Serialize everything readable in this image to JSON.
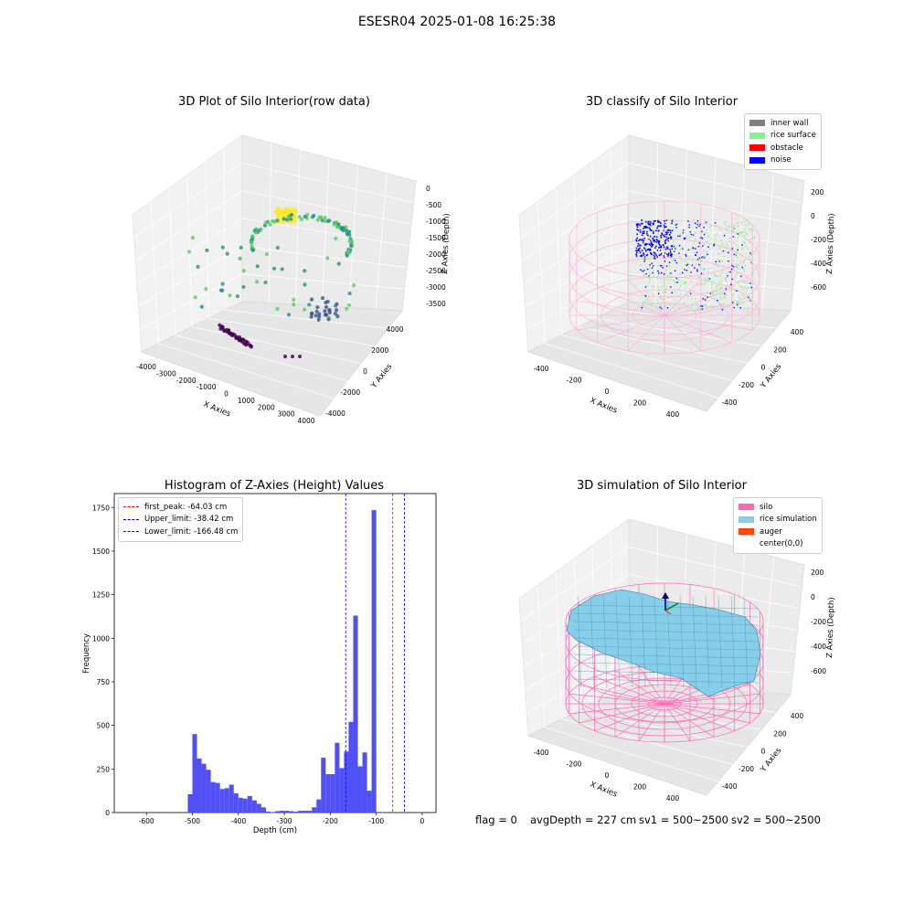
{
  "suptitle": "ESESR04 2025-01-08 16:25:38",
  "chart_data": [
    {
      "type": "scatter",
      "title": "3D Plot of Silo Interior(row data)",
      "xlabel": "X Axies",
      "ylabel": "Y Axies",
      "zlabel": "Z Axies (Depth)",
      "x_ticks": [
        "-4000",
        "-3000",
        "-2000",
        "-1000",
        "0",
        "1000",
        "2000",
        "3000",
        "4000"
      ],
      "y_ticks": [
        "-4000",
        "-2000",
        "0",
        "2000",
        "4000"
      ],
      "z_ticks": [
        "0",
        "-500",
        "-1000",
        "-1500",
        "-2000",
        "-2500",
        "-3000",
        "-3500"
      ],
      "colormap": [
        "#440154",
        "#3b528b",
        "#21918c",
        "#5ec962",
        "#fde725"
      ]
    },
    {
      "type": "scatter",
      "title": "3D classify of Silo Interior",
      "xlabel": "X Axies",
      "ylabel": "Y Axies",
      "zlabel": "Z Axies (Depth)",
      "x_ticks": [
        "-400",
        "-200",
        "0",
        "200",
        "400"
      ],
      "y_ticks": [
        "-400",
        "-200",
        "0",
        "200",
        "400"
      ],
      "z_ticks": [
        "200",
        "0",
        "-200",
        "-400",
        "-600"
      ],
      "legend": [
        {
          "label": "inner wall",
          "color": "#808080"
        },
        {
          "label": "rice surface",
          "color": "#90ee90"
        },
        {
          "label": "obstacle",
          "color": "#ff0000"
        },
        {
          "label": "noise",
          "color": "#0000ff"
        }
      ]
    },
    {
      "type": "bar",
      "title": "Histogram of Z-Axies (Height) Values",
      "xlabel": "Depth (cm)",
      "ylabel": "Frequency",
      "bar_color": "#5050f5",
      "xlim": [
        -670,
        30
      ],
      "ylim": [
        0,
        1830
      ],
      "x_ticks": [
        -600,
        -500,
        -400,
        -300,
        -200,
        -100,
        0
      ],
      "y_ticks": [
        0,
        250,
        500,
        750,
        1000,
        1250,
        1500,
        1750
      ],
      "bin_width": 10,
      "bin_start": -510,
      "values": [
        105,
        450,
        310,
        280,
        245,
        175,
        170,
        135,
        140,
        160,
        110,
        85,
        80,
        95,
        70,
        50,
        30,
        5,
        2,
        8,
        10,
        10,
        8,
        5,
        10,
        10,
        10,
        30,
        75,
        315,
        220,
        220,
        400,
        255,
        350,
        520,
        1130,
        265,
        345,
        125,
        1735
      ],
      "lines": [
        {
          "label": "first_peak: -64.03 cm",
          "x": -64.03,
          "color": "#ff0000"
        },
        {
          "label": "Upper_limit: -38.42 cm",
          "x": -38.42,
          "color": "#0000ff"
        },
        {
          "label": "Lower_limit: -166.48 cm",
          "x": -166.48,
          "color": "#0000ff"
        }
      ]
    },
    {
      "type": "area",
      "title": "3D simulation of Silo Interior",
      "xlabel": "X Axies",
      "ylabel": "Y Axies",
      "zlabel": "Z Axies (Depth)",
      "x_ticks": [
        "-400",
        "-200",
        "0",
        "200",
        "400"
      ],
      "y_ticks": [
        "-400",
        "-200",
        "0",
        "200",
        "400"
      ],
      "z_ticks": [
        "200",
        "0",
        "-200",
        "-400",
        "-600"
      ],
      "legend": [
        {
          "label": "silo",
          "color": "#ff69b4"
        },
        {
          "label": "rice simulation",
          "color": "#87ceeb"
        },
        {
          "label": "auger",
          "color": "#ff4500"
        },
        {
          "label": "center(0,0)",
          "color": ""
        }
      ]
    }
  ],
  "footer": {
    "flag": "flag = 0",
    "avg_depth": "avgDepth = 227 cm",
    "sv1": "sv1 = 500~2500",
    "sv2": "sv2 = 500~2500"
  }
}
